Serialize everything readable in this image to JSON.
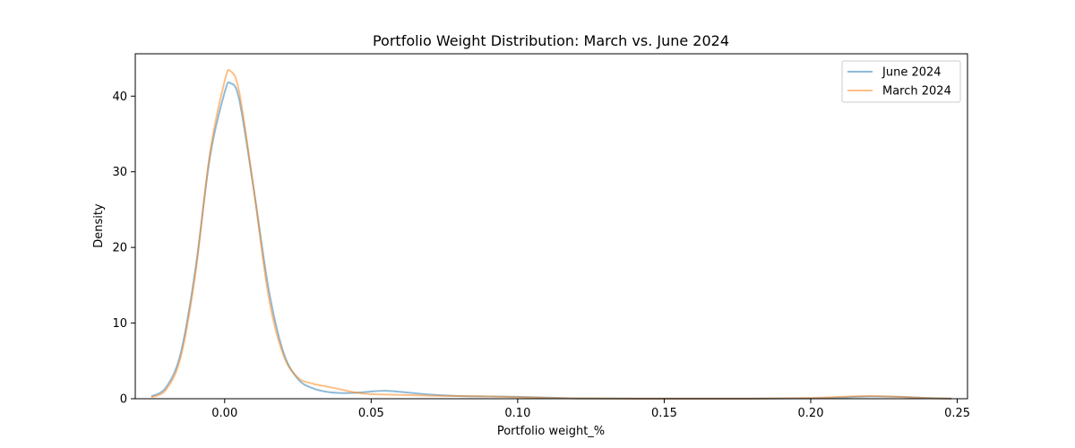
{
  "chart_data": {
    "type": "line",
    "title": "Portfolio Weight Distribution: March vs. June 2024",
    "xlabel": "Portfolio weight_%",
    "ylabel": "Density",
    "xlim": [
      -0.0305,
      0.2535
    ],
    "ylim": [
      0,
      45.6
    ],
    "xticks": [
      0.0,
      0.05,
      0.1,
      0.15,
      0.2,
      0.25
    ],
    "xtick_labels": [
      "0.00",
      "0.05",
      "0.10",
      "0.15",
      "0.20",
      "0.25"
    ],
    "yticks": [
      0,
      10,
      20,
      30,
      40
    ],
    "ytick_labels": [
      "0",
      "10",
      "20",
      "30",
      "40"
    ],
    "legend_position": "top-right",
    "grid": false,
    "series": [
      {
        "name": "June 2024",
        "color": "#1f77b4",
        "opacity": 0.5,
        "x": [
          -0.025,
          -0.02,
          -0.015,
          -0.01,
          -0.005,
          0.0,
          0.002,
          0.005,
          0.01,
          0.015,
          0.02,
          0.025,
          0.03,
          0.035,
          0.04,
          0.045,
          0.05,
          0.055,
          0.06,
          0.07,
          0.08,
          0.09,
          0.1,
          0.11,
          0.12,
          0.14,
          0.16,
          0.18,
          0.2,
          0.21,
          0.22,
          0.23,
          0.24,
          0.248
        ],
        "values": [
          0.3,
          1.5,
          6.0,
          17.0,
          32.0,
          40.5,
          41.7,
          39.5,
          27.5,
          14.5,
          6.2,
          2.6,
          1.4,
          0.9,
          0.75,
          0.8,
          0.95,
          1.05,
          0.9,
          0.55,
          0.35,
          0.3,
          0.25,
          0.15,
          0.05,
          0.02,
          0.02,
          0.02,
          0.05,
          0.15,
          0.3,
          0.25,
          0.1,
          0.02
        ]
      },
      {
        "name": "March 2024",
        "color": "#ff7f0e",
        "opacity": 0.5,
        "x": [
          -0.025,
          -0.02,
          -0.015,
          -0.01,
          -0.005,
          0.0,
          0.002,
          0.005,
          0.01,
          0.015,
          0.02,
          0.025,
          0.03,
          0.035,
          0.04,
          0.045,
          0.05,
          0.06,
          0.07,
          0.08,
          0.09,
          0.1,
          0.11,
          0.12,
          0.14,
          0.16,
          0.18,
          0.2,
          0.21,
          0.22,
          0.23,
          0.24,
          0.248
        ],
        "values": [
          0.2,
          1.2,
          5.5,
          16.5,
          32.5,
          42.0,
          43.3,
          40.5,
          27.5,
          13.5,
          5.8,
          2.8,
          2.0,
          1.6,
          1.2,
          0.8,
          0.6,
          0.5,
          0.4,
          0.35,
          0.3,
          0.2,
          0.1,
          0.05,
          0.02,
          0.02,
          0.02,
          0.1,
          0.25,
          0.35,
          0.25,
          0.08,
          0.02
        ]
      }
    ]
  }
}
